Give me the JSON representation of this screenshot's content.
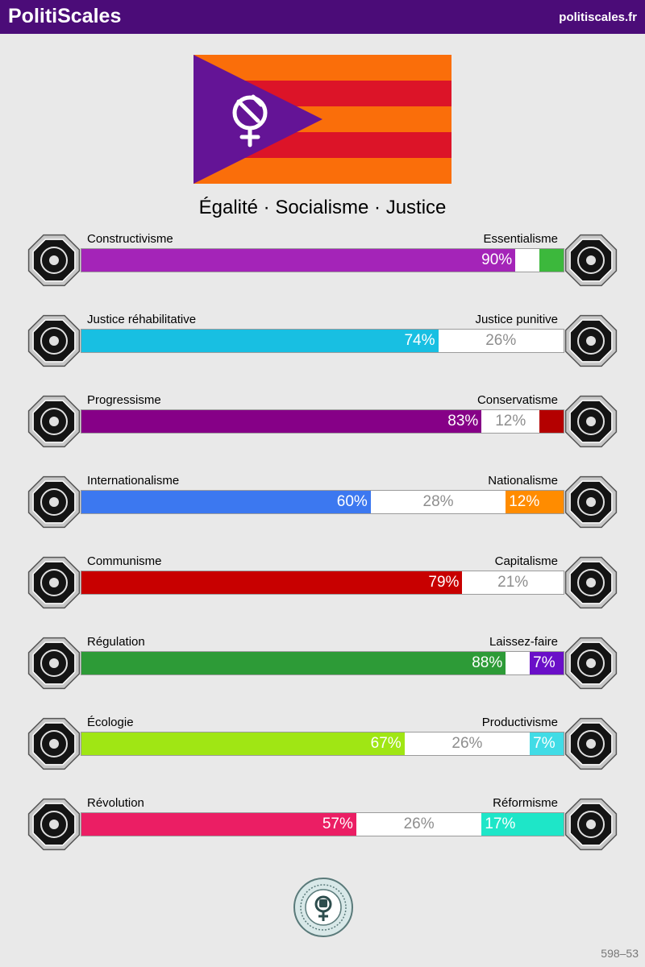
{
  "header": {
    "title": "PolitiScales",
    "site": "politiscales.fr"
  },
  "flag": {
    "stripe_colors": [
      "#fa6e0a",
      "#dc1428",
      "#fa6e0a",
      "#dc1428",
      "#fa6e0a"
    ],
    "triangle_color": "#641496",
    "emblem_icon": "hammer-sickle-venus-icon"
  },
  "motto": "Égalité · Socialisme · Justice",
  "axes": [
    {
      "left_label": "Constructivisme",
      "right_label": "Essentialisme",
      "left_pct": 90,
      "right_pct": 5,
      "left_text": "90%",
      "mid_text": "",
      "right_text": "",
      "left_color": "#a424b8",
      "right_color": "#3cb83c",
      "left_icon": "eye-web-icon",
      "right_icon": "dna-flower-icon"
    },
    {
      "left_label": "Justice réhabilitative",
      "right_label": "Justice punitive",
      "left_pct": 74,
      "right_pct": 0,
      "left_text": "74%",
      "mid_text": "26%",
      "right_text": "",
      "left_color": "#18bfe2",
      "right_color": "#666666",
      "left_icon": "handshake-icon",
      "right_icon": "prison-bars-icon"
    },
    {
      "left_label": "Progressisme",
      "right_label": "Conservatisme",
      "left_pct": 83,
      "right_pct": 5,
      "left_text": "83%",
      "mid_text": "12%",
      "right_text": "",
      "left_color": "#860087",
      "right_color": "#b40000",
      "left_icon": "rocket-icon",
      "right_icon": "quill-pen-icon"
    },
    {
      "left_label": "Internationalisme",
      "right_label": "Nationalisme",
      "left_pct": 60,
      "right_pct": 12,
      "left_text": "60%",
      "mid_text": "28%",
      "right_text": "12%",
      "left_color": "#3c78f0",
      "right_color": "#ff8c00",
      "left_icon": "globe-laurel-icon",
      "right_icon": "flag-icon"
    },
    {
      "left_label": "Communisme",
      "right_label": "Capitalisme",
      "left_pct": 79,
      "right_pct": 0,
      "left_text": "79%",
      "mid_text": "21%",
      "right_text": "",
      "left_color": "#c80000",
      "right_color": "#666666",
      "left_icon": "hammer-sickle-icon",
      "right_icon": "money-bag-icon"
    },
    {
      "left_label": "Régulation",
      "right_label": "Laissez-faire",
      "left_pct": 88,
      "right_pct": 7,
      "left_text": "88%",
      "mid_text": "",
      "right_text": "7%",
      "left_color": "#2d9b37",
      "right_color": "#6a0fc8",
      "left_icon": "ruler-set-square-icon",
      "right_icon": "butterfly-icon"
    },
    {
      "left_label": "Écologie",
      "right_label": "Productivisme",
      "left_pct": 67,
      "right_pct": 7,
      "left_text": "67%",
      "mid_text": "26%",
      "right_text": "7%",
      "left_color": "#a0e614",
      "right_color": "#41dce6",
      "left_icon": "sprout-icon",
      "right_icon": "gear-icon"
    },
    {
      "left_label": "Révolution",
      "right_label": "Réformisme",
      "left_pct": 57,
      "right_pct": 17,
      "left_text": "57%",
      "mid_text": "26%",
      "right_text": "17%",
      "left_color": "#eb1e64",
      "right_color": "#1ee6c8",
      "left_icon": "torch-fist-icon",
      "right_icon": "parliament-icon"
    }
  ],
  "seal": {
    "icon": "feminism-fist-seal-icon"
  },
  "footer": {
    "code": "598–53"
  }
}
